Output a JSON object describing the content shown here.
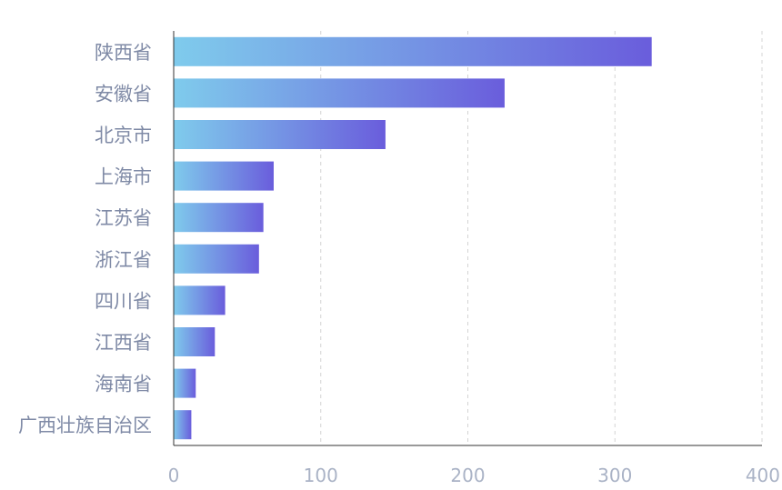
{
  "chart_data": {
    "type": "bar",
    "orientation": "horizontal",
    "categories": [
      "陕西省",
      "安徽省",
      "北京市",
      "上海市",
      "江苏省",
      "浙江省",
      "四川省",
      "江西省",
      "海南省",
      "广西壮族自治区"
    ],
    "values": [
      325,
      225,
      144,
      68,
      61,
      58,
      35,
      28,
      15,
      12
    ],
    "xlim": [
      0,
      400
    ],
    "xticks": [
      "0",
      "100",
      "200",
      "300",
      "400"
    ],
    "grid": "vertical-dashed",
    "colors": {
      "bar_start": "#7fcbec",
      "bar_end": "#6a5ddc",
      "grid": "#d4d4d4",
      "axis": "#333333",
      "ylabel": "#7f8aa6",
      "xlabel": "#aab3c6"
    }
  }
}
